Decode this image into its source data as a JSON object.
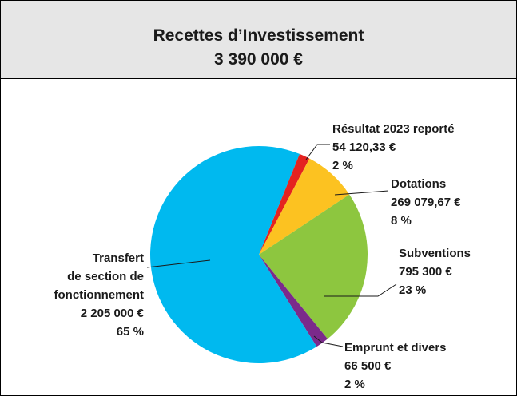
{
  "chart_data": {
    "type": "pie",
    "title": "Recettes d’Investissement",
    "subtitle": "3 390 000 €",
    "categories": [
      "Résultat 2023 reporté",
      "Dotations",
      "Subventions",
      "Emprunt et divers",
      "Transfert\nde section de\nfonctionnement"
    ],
    "values": [
      54120.33,
      269079.67,
      795300,
      66500,
      2205000
    ],
    "value_labels": [
      "54 120,33 €",
      "269 079,67 €",
      "795 300 €",
      "66 500 €",
      "2 205 000 €"
    ],
    "percent_labels": [
      "2 %",
      "8 %",
      "23 %",
      "2 %",
      "65 %"
    ],
    "colors": [
      "#e42320",
      "#fcc221",
      "#8dc63f",
      "#7b2a8b",
      "#00b9ef"
    ]
  }
}
